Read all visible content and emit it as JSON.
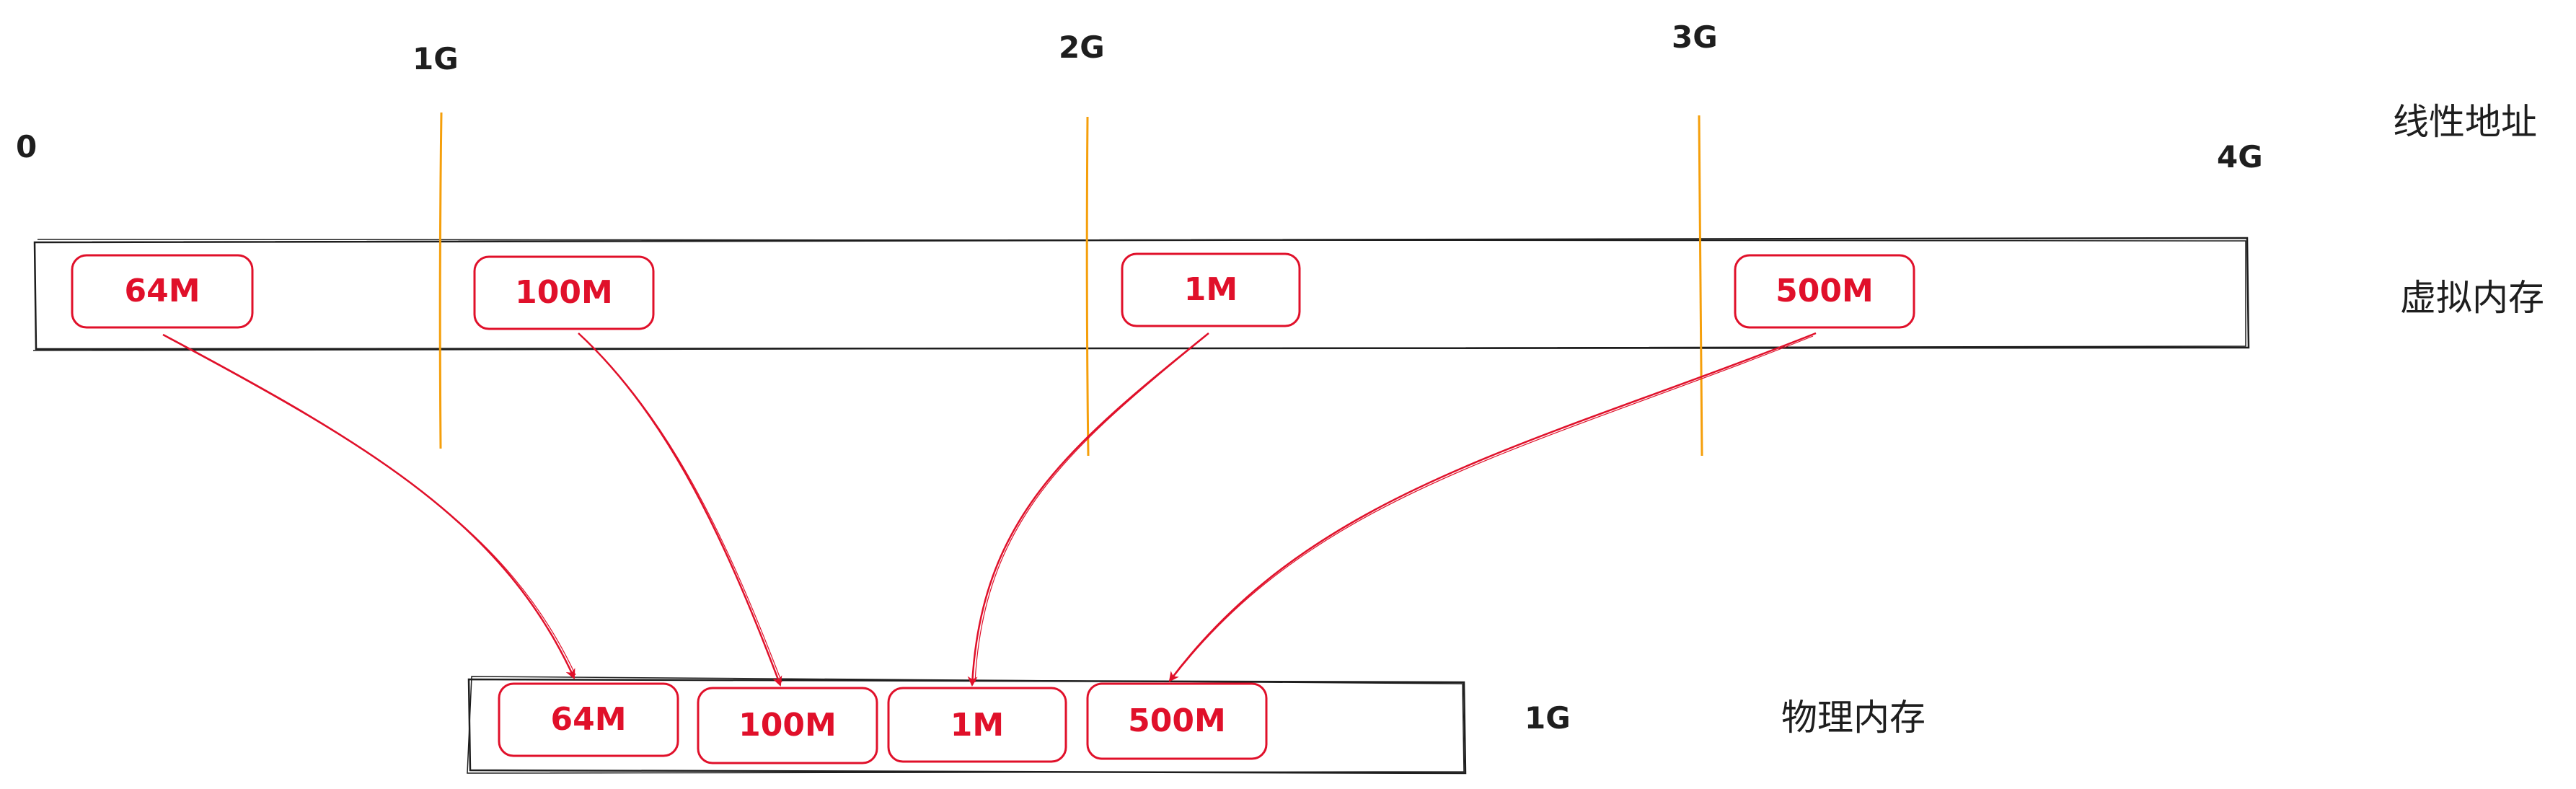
{
  "axis": {
    "start": "0",
    "ticks": [
      "1G",
      "2G",
      "3G"
    ],
    "end": "4G"
  },
  "labels": {
    "linear_address": "线性地址",
    "virtual_memory": "虚拟内存",
    "physical_memory": "物理内存",
    "physical_size": "1G"
  },
  "virtual_blocks": [
    "64M",
    "100M",
    "1M",
    "500M"
  ],
  "physical_blocks": [
    "64M",
    "100M",
    "1M",
    "500M"
  ],
  "colors": {
    "block": "#e0102a",
    "divider": "#f59f0b",
    "outline": "#1e1e1e"
  }
}
